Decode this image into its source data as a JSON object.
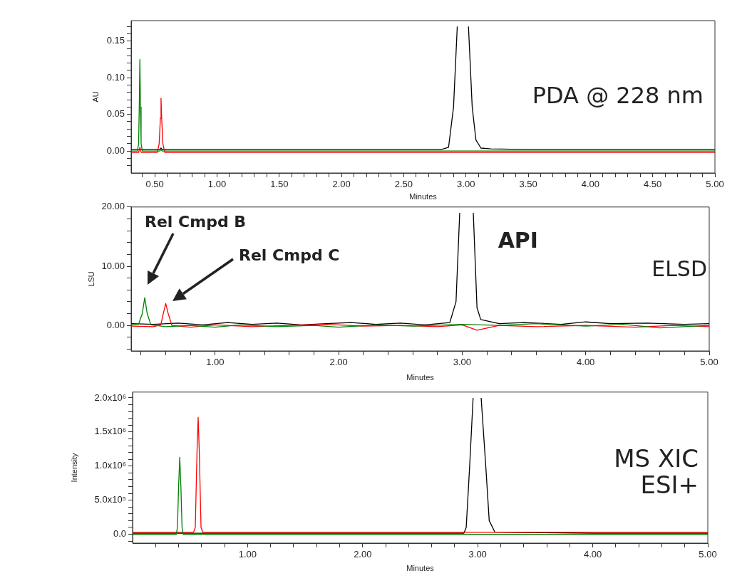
{
  "chart_data": [
    {
      "type": "line",
      "xlabel": "Minutes",
      "ylabel": "AU",
      "xlim": [
        0.31,
        5.0
      ],
      "ylim": [
        -0.03,
        0.178
      ],
      "xticks": [
        {
          "value": 0.4,
          "label": null
        },
        {
          "value": 0.5,
          "label": "0.50"
        },
        {
          "value": 0.6,
          "label": null
        },
        {
          "value": 0.7,
          "label": null
        },
        {
          "value": 0.8,
          "label": null
        },
        {
          "value": 0.9,
          "label": null
        },
        {
          "value": 1.0,
          "label": "1.00"
        },
        {
          "value": 1.1,
          "label": null
        },
        {
          "value": 1.2,
          "label": null
        },
        {
          "value": 1.3,
          "label": null
        },
        {
          "value": 1.4,
          "label": null
        },
        {
          "value": 1.5,
          "label": "1.50"
        },
        {
          "value": 1.6,
          "label": null
        },
        {
          "value": 1.7,
          "label": null
        },
        {
          "value": 1.8,
          "label": null
        },
        {
          "value": 1.9,
          "label": null
        },
        {
          "value": 2.0,
          "label": "2.00"
        },
        {
          "value": 2.1,
          "label": null
        },
        {
          "value": 2.2,
          "label": null
        },
        {
          "value": 2.3,
          "label": null
        },
        {
          "value": 2.4,
          "label": null
        },
        {
          "value": 2.5,
          "label": "2.50"
        },
        {
          "value": 2.6,
          "label": null
        },
        {
          "value": 2.7,
          "label": null
        },
        {
          "value": 2.8,
          "label": null
        },
        {
          "value": 2.9,
          "label": null
        },
        {
          "value": 3.0,
          "label": "3.00"
        },
        {
          "value": 3.1,
          "label": null
        },
        {
          "value": 3.2,
          "label": null
        },
        {
          "value": 3.3,
          "label": null
        },
        {
          "value": 3.4,
          "label": null
        },
        {
          "value": 3.5,
          "label": "3.50"
        },
        {
          "value": 3.6,
          "label": null
        },
        {
          "value": 3.7,
          "label": null
        },
        {
          "value": 3.8,
          "label": null
        },
        {
          "value": 3.9,
          "label": null
        },
        {
          "value": 4.0,
          "label": "4.00"
        },
        {
          "value": 4.1,
          "label": null
        },
        {
          "value": 4.2,
          "label": null
        },
        {
          "value": 4.3,
          "label": null
        },
        {
          "value": 4.4,
          "label": null
        },
        {
          "value": 4.5,
          "label": "4.50"
        },
        {
          "value": 4.6,
          "label": null
        },
        {
          "value": 4.7,
          "label": null
        },
        {
          "value": 4.8,
          "label": null
        },
        {
          "value": 4.9,
          "label": null
        },
        {
          "value": 5.0,
          "label": "5.00"
        }
      ],
      "yticks": [
        {
          "value": -0.02,
          "label": null
        },
        {
          "value": -0.01,
          "label": null
        },
        {
          "value": 0,
          "label": "0.00"
        },
        {
          "value": 0.01,
          "label": null
        },
        {
          "value": 0.02,
          "label": null
        },
        {
          "value": 0.03,
          "label": null
        },
        {
          "value": 0.04,
          "label": null
        },
        {
          "value": 0.05,
          "label": "0.05"
        },
        {
          "value": 0.06,
          "label": null
        },
        {
          "value": 0.07,
          "label": null
        },
        {
          "value": 0.08,
          "label": null
        },
        {
          "value": 0.09,
          "label": null
        },
        {
          "value": 0.1,
          "label": "0.10"
        },
        {
          "value": 0.11,
          "label": null
        },
        {
          "value": 0.12,
          "label": null
        },
        {
          "value": 0.13,
          "label": null
        },
        {
          "value": 0.14,
          "label": null
        },
        {
          "value": 0.15,
          "label": "0.15"
        },
        {
          "value": 0.16,
          "label": null
        },
        {
          "value": 0.17,
          "label": null
        }
      ],
      "series": [
        {
          "color": "#008000",
          "x": [
            0.31,
            0.36,
            0.37,
            0.375,
            0.38,
            0.385,
            0.39,
            0.4,
            0.45,
            0.54,
            0.55,
            0.56,
            0.6,
            1.0,
            2.0,
            3.0,
            4.0,
            5.0
          ],
          "values": [
            0,
            0,
            0.01,
            0.06,
            0.125,
            0.06,
            0.01,
            0,
            0,
            0,
            0.002,
            0,
            0,
            0,
            0,
            0,
            0,
            0
          ]
        },
        {
          "color": "#ff0000",
          "x": [
            0.31,
            0.37,
            0.38,
            0.39,
            0.4,
            0.52,
            0.535,
            0.545,
            0.55,
            0.555,
            0.565,
            0.58,
            0.6,
            1.0,
            2.0,
            3.0,
            4.0,
            5.0
          ],
          "values": [
            -0.002,
            -0.002,
            0.005,
            -0.002,
            -0.002,
            -0.002,
            0.01,
            0.045,
            0.072,
            0.045,
            0.01,
            -0.002,
            -0.002,
            -0.002,
            -0.002,
            -0.002,
            -0.002,
            -0.002
          ]
        },
        {
          "color": "#000000",
          "x": [
            0.31,
            0.54,
            0.55,
            0.56,
            1.0,
            2.0,
            2.8,
            2.86,
            2.9,
            2.93,
            2.97,
            3.02,
            3.05,
            3.08,
            3.12,
            3.2,
            3.5,
            4.0,
            5.0
          ],
          "values": [
            0.002,
            0.002,
            0.004,
            0.002,
            0.002,
            0.002,
            0.002,
            0.005,
            0.06,
            0.17,
            null,
            0.17,
            0.06,
            0.015,
            0.004,
            0.003,
            0.002,
            0.002,
            0.002
          ]
        }
      ],
      "annotations": [
        "PDA @ 228 nm"
      ]
    },
    {
      "type": "line",
      "xlabel": "Minutes",
      "ylabel": "LSU",
      "xlim": [
        0.32,
        5.0
      ],
      "ylim": [
        -4.3,
        20
      ],
      "xticks": [
        {
          "value": 0.4,
          "label": null
        },
        {
          "value": 0.6,
          "label": null
        },
        {
          "value": 0.8,
          "label": null
        },
        {
          "value": 1.0,
          "label": "1.00"
        },
        {
          "value": 1.2,
          "label": null
        },
        {
          "value": 1.4,
          "label": null
        },
        {
          "value": 1.6,
          "label": null
        },
        {
          "value": 1.8,
          "label": null
        },
        {
          "value": 2.0,
          "label": "2.00"
        },
        {
          "value": 2.2,
          "label": null
        },
        {
          "value": 2.4,
          "label": null
        },
        {
          "value": 2.6,
          "label": null
        },
        {
          "value": 2.8,
          "label": null
        },
        {
          "value": 3.0,
          "label": "3.00"
        },
        {
          "value": 3.2,
          "label": null
        },
        {
          "value": 3.4,
          "label": null
        },
        {
          "value": 3.6,
          "label": null
        },
        {
          "value": 3.8,
          "label": null
        },
        {
          "value": 4.0,
          "label": "4.00"
        },
        {
          "value": 4.2,
          "label": null
        },
        {
          "value": 4.4,
          "label": null
        },
        {
          "value": 4.6,
          "label": null
        },
        {
          "value": 4.8,
          "label": null
        },
        {
          "value": 5.0,
          "label": "5.00"
        }
      ],
      "yticks": [
        {
          "value": -4,
          "label": null
        },
        {
          "value": -2,
          "label": null
        },
        {
          "value": 0,
          "label": "0.00"
        },
        {
          "value": 2,
          "label": null
        },
        {
          "value": 4,
          "label": null
        },
        {
          "value": 6,
          "label": null
        },
        {
          "value": 8,
          "label": null
        },
        {
          "value": 10,
          "label": "10.00"
        },
        {
          "value": 12,
          "label": null
        },
        {
          "value": 14,
          "label": null
        },
        {
          "value": 16,
          "label": null
        },
        {
          "value": 18,
          "label": null
        },
        {
          "value": 20,
          "label": "20.00"
        }
      ],
      "series": [
        {
          "color": "#008000",
          "x": [
            0.32,
            0.38,
            0.41,
            0.43,
            0.45,
            0.48,
            0.6,
            0.8,
            1.0,
            1.2,
            1.5,
            1.8,
            2.0,
            2.3,
            2.6,
            3.0,
            3.3,
            3.6,
            4.0,
            4.3,
            4.6,
            5.0
          ],
          "values": [
            0.1,
            0.2,
            2,
            4.7,
            2,
            0.1,
            -0.2,
            0,
            -0.3,
            0.1,
            -0.2,
            0,
            -0.3,
            0.1,
            -0.1,
            0.2,
            0,
            0.3,
            -0.1,
            0.2,
            -0.4,
            0
          ]
        },
        {
          "color": "#ff0000",
          "x": [
            0.32,
            0.5,
            0.56,
            0.58,
            0.6,
            0.62,
            0.65,
            0.8,
            1.0,
            1.3,
            1.6,
            1.9,
            2.2,
            2.5,
            2.8,
            3.0,
            3.12,
            3.3,
            3.6,
            4.0,
            4.4,
            4.7,
            5.0
          ],
          "values": [
            -0.1,
            -0.2,
            0.1,
            2,
            3.7,
            2,
            0,
            -0.3,
            0.1,
            -0.2,
            0,
            0.2,
            -0.1,
            0,
            -0.2,
            0.1,
            -0.8,
            0,
            -0.2,
            0,
            -0.3,
            0,
            -0.2
          ]
        },
        {
          "color": "#000000",
          "x": [
            0.32,
            0.5,
            0.7,
            0.9,
            1.1,
            1.3,
            1.5,
            1.7,
            1.9,
            2.1,
            2.3,
            2.5,
            2.7,
            2.9,
            2.95,
            2.98,
            3.03,
            3.09,
            3.12,
            3.15,
            3.3,
            3.5,
            3.8,
            4.0,
            4.2,
            4.5,
            4.8,
            5.0
          ],
          "values": [
            0.3,
            0.2,
            0.4,
            0.1,
            0.5,
            0.2,
            0.4,
            0.1,
            0.3,
            0.5,
            0.2,
            0.4,
            0.1,
            0.5,
            4,
            19,
            null,
            19,
            3,
            1,
            0.3,
            0.5,
            0.2,
            0.6,
            0.3,
            0.4,
            0.2,
            0.3
          ]
        }
      ],
      "annotations": [
        "Rel Cmpd B",
        "Rel Cmpd C",
        "API",
        "ELSD"
      ]
    },
    {
      "type": "line",
      "xlabel": "Minutes",
      "ylabel": "Intensity",
      "xlim": [
        0,
        5.0
      ],
      "ylim": [
        -130000,
        2085000
      ],
      "xticks": [
        {
          "value": 0.2,
          "label": null
        },
        {
          "value": 0.4,
          "label": null
        },
        {
          "value": 0.6,
          "label": null
        },
        {
          "value": 0.8,
          "label": null
        },
        {
          "value": 1.0,
          "label": "1.00"
        },
        {
          "value": 1.2,
          "label": null
        },
        {
          "value": 1.4,
          "label": null
        },
        {
          "value": 1.6,
          "label": null
        },
        {
          "value": 1.8,
          "label": null
        },
        {
          "value": 2.0,
          "label": "2.00"
        },
        {
          "value": 2.2,
          "label": null
        },
        {
          "value": 2.4,
          "label": null
        },
        {
          "value": 2.6,
          "label": null
        },
        {
          "value": 2.8,
          "label": null
        },
        {
          "value": 3.0,
          "label": "3.00"
        },
        {
          "value": 3.2,
          "label": null
        },
        {
          "value": 3.4,
          "label": null
        },
        {
          "value": 3.6,
          "label": null
        },
        {
          "value": 3.8,
          "label": null
        },
        {
          "value": 4.0,
          "label": "4.00"
        },
        {
          "value": 4.2,
          "label": null
        },
        {
          "value": 4.4,
          "label": null
        },
        {
          "value": 4.6,
          "label": null
        },
        {
          "value": 4.8,
          "label": null
        },
        {
          "value": 5.0,
          "label": "5.00"
        }
      ],
      "yticks": [
        {
          "value": -100000,
          "label": null
        },
        {
          "value": 0,
          "label": "0.0"
        },
        {
          "value": 100000,
          "label": null
        },
        {
          "value": 200000,
          "label": null
        },
        {
          "value": 300000,
          "label": null
        },
        {
          "value": 400000,
          "label": null
        },
        {
          "value": 500000,
          "label": "5.0x10⁵"
        },
        {
          "value": 600000,
          "label": null
        },
        {
          "value": 700000,
          "label": null
        },
        {
          "value": 800000,
          "label": null
        },
        {
          "value": 900000,
          "label": null
        },
        {
          "value": 1000000,
          "label": "1.0x10⁶"
        },
        {
          "value": 1100000,
          "label": null
        },
        {
          "value": 1200000,
          "label": null
        },
        {
          "value": 1300000,
          "label": null
        },
        {
          "value": 1400000,
          "label": null
        },
        {
          "value": 1500000,
          "label": "1.5x10⁶"
        },
        {
          "value": 1600000,
          "label": null
        },
        {
          "value": 1700000,
          "label": null
        },
        {
          "value": 1800000,
          "label": null
        },
        {
          "value": 1900000,
          "label": null
        },
        {
          "value": 2000000,
          "label": "2.0x10⁶"
        }
      ],
      "series": [
        {
          "color": "#008000",
          "x": [
            0,
            0.38,
            0.39,
            0.4,
            0.41,
            0.42,
            0.43,
            0.44,
            1.0,
            2.0,
            3.0,
            4.0,
            5.0
          ],
          "values": [
            0,
            0,
            100000,
            700000,
            1130000,
            700000,
            100000,
            0,
            0,
            0,
            0,
            0,
            0
          ]
        },
        {
          "color": "#ff0000",
          "x": [
            0,
            0.53,
            0.545,
            0.56,
            0.57,
            0.58,
            0.595,
            0.61,
            1.0,
            2.0,
            3.0,
            4.0,
            5.0
          ],
          "values": [
            30000,
            30000,
            100000,
            1200000,
            1715000,
            1200000,
            100000,
            30000,
            30000,
            30000,
            30000,
            30000,
            30000
          ]
        },
        {
          "color": "#000000",
          "x": [
            0,
            1.0,
            2.0,
            2.88,
            2.9,
            2.93,
            2.96,
            3.0,
            3.03,
            3.07,
            3.1,
            3.15,
            4.0,
            5.0
          ],
          "values": [
            15000,
            15000,
            15000,
            15000,
            100000,
            1000000,
            2000000,
            null,
            2000000,
            1000000,
            200000,
            30000,
            15000,
            15000
          ]
        }
      ],
      "annotations": [
        "MS XIC\nESI+"
      ]
    }
  ]
}
